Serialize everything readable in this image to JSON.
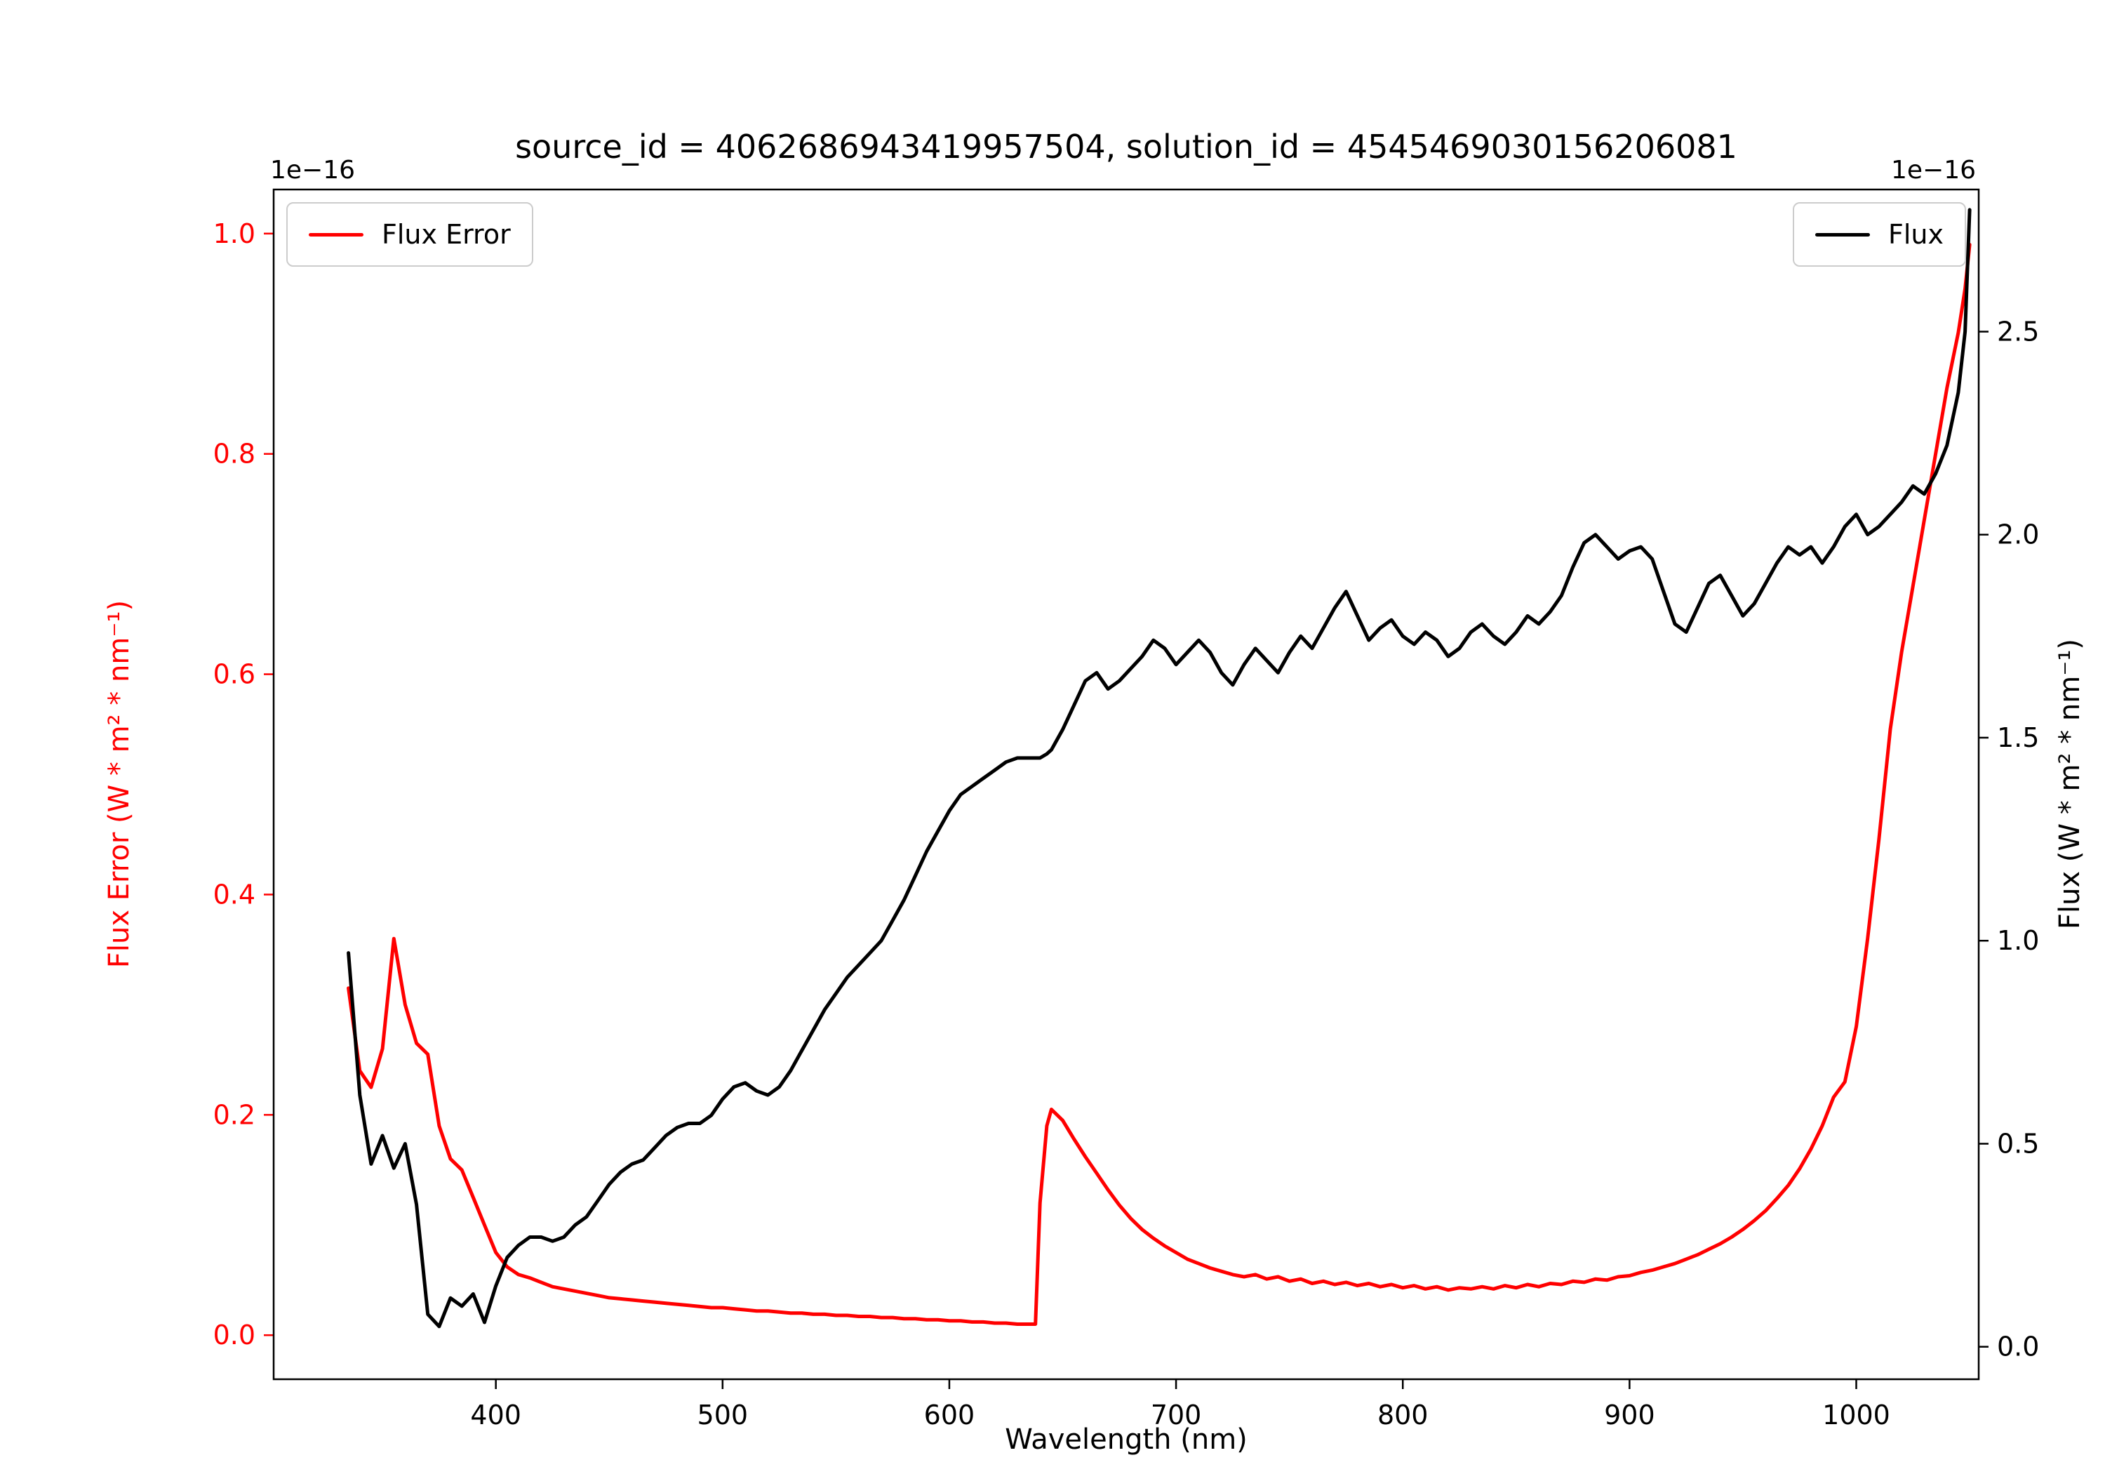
{
  "chart_data": {
    "type": "line",
    "title": "source_id = 4062686943419957504, solution_id = 4545469030156206081",
    "xlabel": "Wavelength (nm)",
    "ylabel_left": "Flux Error (W * m² * nm⁻¹)",
    "ylabel_right": "Flux (W * m² * nm⁻¹)",
    "offset_text_left": "1e−16",
    "offset_text_right": "1e−16",
    "units_scale": "1e-16",
    "xlim": [
      302,
      1054
    ],
    "ylim_left": [
      -0.04,
      1.04
    ],
    "ylim_right": [
      -0.08,
      2.85
    ],
    "grid": false,
    "xticks": {
      "values": [
        400,
        500,
        600,
        700,
        800,
        900,
        1000
      ],
      "labels": [
        "400",
        "500",
        "600",
        "700",
        "800",
        "900",
        "1000"
      ]
    },
    "yticks_left": {
      "values": [
        0.0,
        0.2,
        0.4,
        0.6,
        0.8,
        1.0
      ],
      "labels": [
        "0.0",
        "0.2",
        "0.4",
        "0.6",
        "0.8",
        "1.0"
      ]
    },
    "yticks_right": {
      "values": [
        0.0,
        0.5,
        1.0,
        1.5,
        2.0,
        2.5
      ],
      "labels": [
        "0.0",
        "0.5",
        "1.0",
        "1.5",
        "2.0",
        "2.5"
      ]
    },
    "colors": {
      "flux_error": "#ff0000",
      "flux": "#000000",
      "axes": "#000000",
      "legend_border": "#cccccc"
    },
    "legend": [
      {
        "label": "Flux Error",
        "color": "#ff0000",
        "position": "upper left"
      },
      {
        "label": "Flux",
        "color": "#000000",
        "position": "upper right"
      }
    ],
    "x": [
      335,
      340,
      345,
      350,
      355,
      360,
      365,
      370,
      375,
      380,
      385,
      390,
      395,
      400,
      405,
      410,
      415,
      420,
      425,
      430,
      435,
      440,
      445,
      450,
      455,
      460,
      465,
      470,
      475,
      480,
      485,
      490,
      495,
      500,
      505,
      510,
      515,
      520,
      525,
      530,
      535,
      540,
      545,
      550,
      555,
      560,
      565,
      570,
      575,
      580,
      585,
      590,
      595,
      600,
      605,
      610,
      615,
      620,
      625,
      630,
      635,
      638,
      640,
      643,
      645,
      650,
      655,
      660,
      665,
      670,
      675,
      680,
      685,
      690,
      695,
      700,
      705,
      710,
      715,
      720,
      725,
      730,
      735,
      740,
      745,
      750,
      755,
      760,
      765,
      770,
      775,
      780,
      785,
      790,
      795,
      800,
      805,
      810,
      815,
      820,
      825,
      830,
      835,
      840,
      845,
      850,
      855,
      860,
      865,
      870,
      875,
      880,
      885,
      890,
      895,
      900,
      905,
      910,
      915,
      920,
      925,
      930,
      935,
      940,
      945,
      950,
      955,
      960,
      965,
      970,
      975,
      980,
      985,
      990,
      995,
      1000,
      1005,
      1010,
      1015,
      1020,
      1025,
      1030,
      1035,
      1040,
      1045,
      1048,
      1050
    ],
    "series": [
      {
        "name": "Flux Error",
        "axis": "left",
        "color": "#ff0000",
        "values": [
          0.315,
          0.24,
          0.225,
          0.26,
          0.36,
          0.3,
          0.265,
          0.255,
          0.19,
          0.16,
          0.15,
          0.125,
          0.1,
          0.075,
          0.062,
          0.055,
          0.052,
          0.048,
          0.044,
          0.042,
          0.04,
          0.038,
          0.036,
          0.034,
          0.033,
          0.032,
          0.031,
          0.03,
          0.029,
          0.028,
          0.027,
          0.026,
          0.025,
          0.025,
          0.024,
          0.023,
          0.022,
          0.022,
          0.021,
          0.02,
          0.02,
          0.019,
          0.019,
          0.018,
          0.018,
          0.017,
          0.017,
          0.016,
          0.016,
          0.015,
          0.015,
          0.014,
          0.014,
          0.013,
          0.013,
          0.012,
          0.012,
          0.011,
          0.011,
          0.01,
          0.01,
          0.01,
          0.12,
          0.19,
          0.205,
          0.195,
          0.178,
          0.162,
          0.147,
          0.132,
          0.118,
          0.106,
          0.096,
          0.088,
          0.081,
          0.075,
          0.069,
          0.065,
          0.061,
          0.058,
          0.055,
          0.053,
          0.055,
          0.051,
          0.053,
          0.049,
          0.051,
          0.047,
          0.049,
          0.046,
          0.048,
          0.045,
          0.047,
          0.044,
          0.046,
          0.043,
          0.045,
          0.042,
          0.044,
          0.041,
          0.043,
          0.042,
          0.044,
          0.042,
          0.045,
          0.043,
          0.046,
          0.044,
          0.047,
          0.046,
          0.049,
          0.048,
          0.051,
          0.05,
          0.053,
          0.054,
          0.057,
          0.059,
          0.062,
          0.065,
          0.069,
          0.073,
          0.078,
          0.083,
          0.089,
          0.096,
          0.104,
          0.113,
          0.124,
          0.136,
          0.151,
          0.169,
          0.19,
          0.216,
          0.23,
          0.28,
          0.36,
          0.45,
          0.55,
          0.62,
          0.68,
          0.74,
          0.8,
          0.86,
          0.91,
          0.95,
          0.99
        ]
      },
      {
        "name": "Flux",
        "axis": "right",
        "color": "#000000",
        "values": [
          0.97,
          0.62,
          0.45,
          0.52,
          0.44,
          0.5,
          0.35,
          0.08,
          0.05,
          0.12,
          0.1,
          0.13,
          0.06,
          0.15,
          0.22,
          0.25,
          0.27,
          0.27,
          0.26,
          0.27,
          0.3,
          0.32,
          0.36,
          0.4,
          0.43,
          0.45,
          0.46,
          0.49,
          0.52,
          0.54,
          0.55,
          0.55,
          0.57,
          0.61,
          0.64,
          0.65,
          0.63,
          0.62,
          0.64,
          0.68,
          0.73,
          0.78,
          0.83,
          0.87,
          0.91,
          0.94,
          0.97,
          1.0,
          1.05,
          1.1,
          1.16,
          1.22,
          1.27,
          1.32,
          1.36,
          1.38,
          1.4,
          1.42,
          1.44,
          1.45,
          1.45,
          1.45,
          1.45,
          1.46,
          1.47,
          1.52,
          1.58,
          1.64,
          1.66,
          1.62,
          1.64,
          1.67,
          1.7,
          1.74,
          1.72,
          1.68,
          1.71,
          1.74,
          1.71,
          1.66,
          1.63,
          1.68,
          1.72,
          1.69,
          1.66,
          1.71,
          1.75,
          1.72,
          1.77,
          1.82,
          1.86,
          1.8,
          1.74,
          1.77,
          1.79,
          1.75,
          1.73,
          1.76,
          1.74,
          1.7,
          1.72,
          1.76,
          1.78,
          1.75,
          1.73,
          1.76,
          1.8,
          1.78,
          1.81,
          1.85,
          1.92,
          1.98,
          2.0,
          1.97,
          1.94,
          1.96,
          1.97,
          1.94,
          1.86,
          1.78,
          1.76,
          1.82,
          1.88,
          1.9,
          1.85,
          1.8,
          1.83,
          1.88,
          1.93,
          1.97,
          1.95,
          1.97,
          1.93,
          1.97,
          2.02,
          2.05,
          2.0,
          2.02,
          2.05,
          2.08,
          2.12,
          2.1,
          2.15,
          2.22,
          2.35,
          2.5,
          2.8
        ]
      }
    ]
  }
}
